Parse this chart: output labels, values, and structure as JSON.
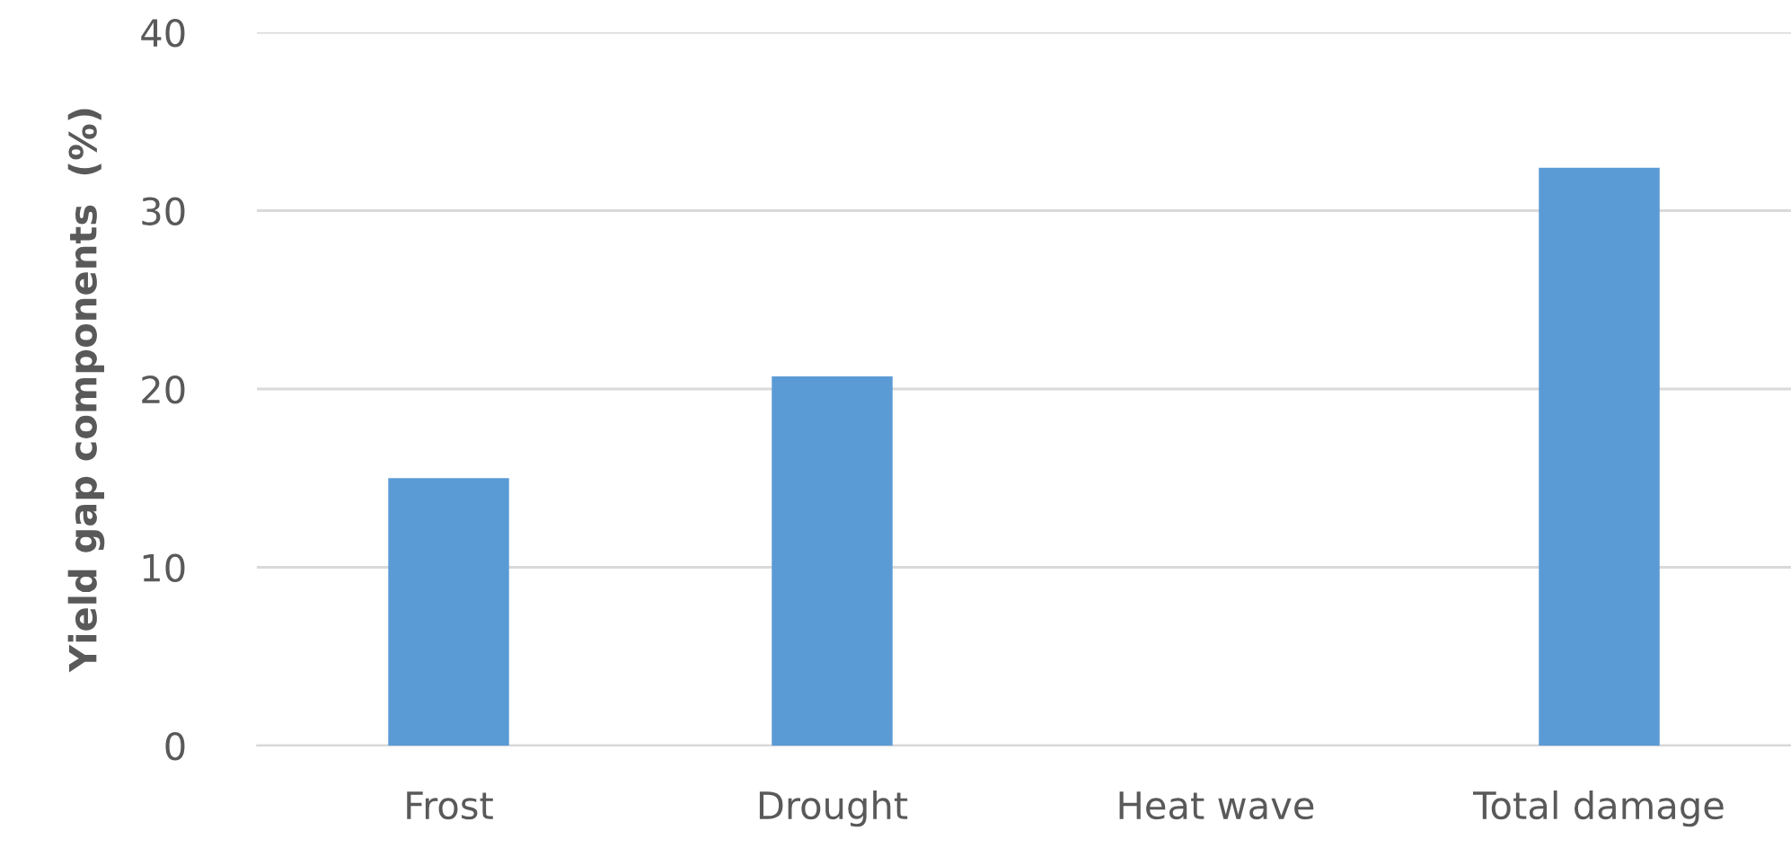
{
  "chart_data": {
    "type": "bar",
    "ylabel": "Yield gap components  (%)",
    "categories": [
      "Frost",
      "Drought",
      "Heat wave",
      "Total damage"
    ],
    "values": [
      15.0,
      20.7,
      0,
      32.4
    ],
    "color": "#5b9bd5",
    "ylim": [
      0,
      40
    ],
    "yticks": [
      0,
      10,
      20,
      30,
      40
    ],
    "grid": "y"
  }
}
